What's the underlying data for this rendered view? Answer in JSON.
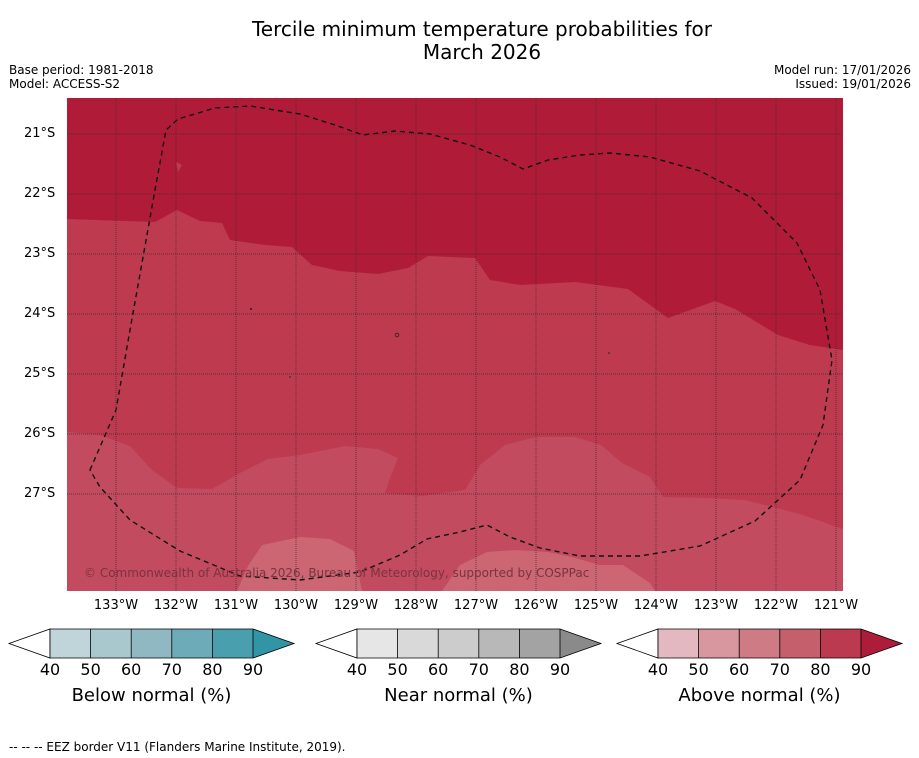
{
  "header": {
    "title_line1": "Tercile minimum temperature probabilities for",
    "title_line2": "March 2026",
    "base_period": "Base period: 1981-2018",
    "model": "Model: ACCESS-S2",
    "model_run": "Model run: 17/01/2026",
    "issued": "Issued: 19/01/2026"
  },
  "map": {
    "latitude_labels": [
      "21°S",
      "22°S",
      "23°S",
      "24°S",
      "25°S",
      "26°S",
      "27°S"
    ],
    "longitude_labels": [
      "133°W",
      "132°W",
      "131°W",
      "130°W",
      "129°W",
      "128°W",
      "127°W",
      "126°W",
      "125°W",
      "124°W",
      "123°W",
      "122°W",
      "121°W"
    ],
    "copyright": "© Commonwealth of Australia 2026, Bureau of Meteorology, supported by COSPPac",
    "colors": {
      "above_90": "#b01c38",
      "above_80": "#bd3a4f",
      "above_70": "#c24b5f",
      "above_60": "#cb6672",
      "grid": "#3a2a2e",
      "eez": "#111111"
    }
  },
  "colorbars": [
    {
      "title": "Below normal (%)",
      "ticks": [
        "40",
        "50",
        "60",
        "70",
        "80",
        "90"
      ],
      "colors": [
        "#c0d5da",
        "#a9c8cd",
        "#8fb8c2",
        "#6eabb8",
        "#4a9fae",
        "#3195a6"
      ]
    },
    {
      "title": "Near normal (%)",
      "ticks": [
        "40",
        "50",
        "60",
        "70",
        "80",
        "90"
      ],
      "colors": [
        "#e6e6e6",
        "#d9d9d9",
        "#cccccc",
        "#b8b8b8",
        "#a3a3a3",
        "#8a8a8a"
      ]
    },
    {
      "title": "Above normal (%)",
      "ticks": [
        "40",
        "50",
        "60",
        "70",
        "80",
        "90"
      ],
      "colors": [
        "#e4b8c0",
        "#d8979f",
        "#cf7b85",
        "#c55f6c",
        "#bb3a4f",
        "#ad1d3a"
      ]
    }
  ],
  "footer": {
    "legend_text": "--  --  -- EEZ border V11 (Flanders Marine Institute, 2019)."
  }
}
